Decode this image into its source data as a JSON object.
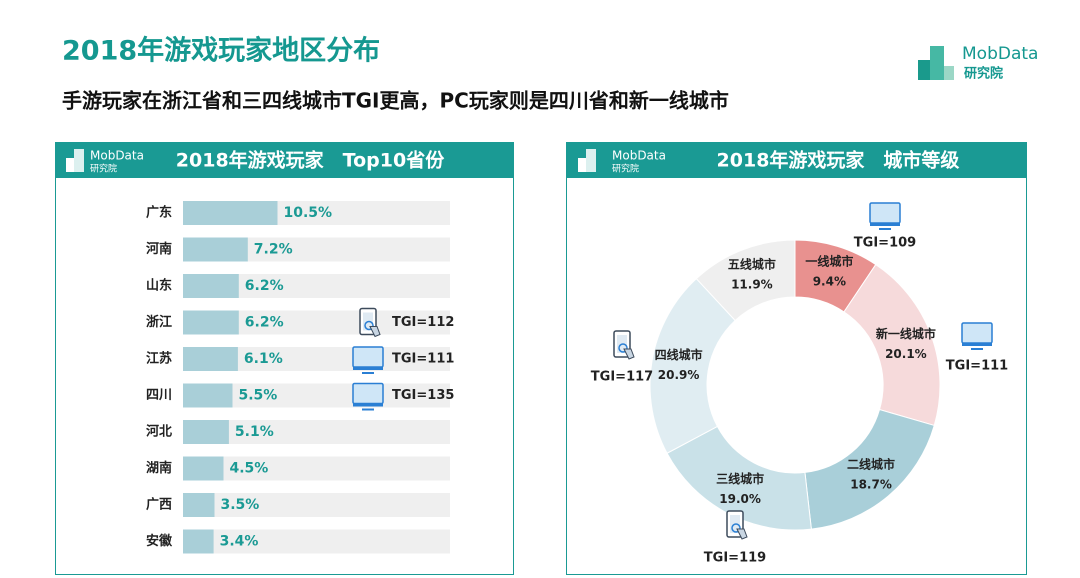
{
  "header": {
    "title": "2018年游戏玩家地区分布",
    "subtitle": "手游玩家在浙江省和三四线城市TGI更高，PC玩家则是四川省和新一线城市",
    "logo": {
      "name": "MobData",
      "sub": "研究院"
    }
  },
  "chart_data": [
    {
      "type": "bar",
      "orientation": "horizontal",
      "title": "2018年游戏玩家　Top10省份",
      "categories": [
        "广东",
        "河南",
        "山东",
        "浙江",
        "江苏",
        "四川",
        "河北",
        "湖南",
        "广西",
        "安徽"
      ],
      "values": [
        10.5,
        7.2,
        6.2,
        6.2,
        6.1,
        5.5,
        5.1,
        4.5,
        3.5,
        3.4
      ],
      "value_labels": [
        "10.5%",
        "7.2%",
        "6.2%",
        "6.2%",
        "6.1%",
        "5.5%",
        "5.1%",
        "4.5%",
        "3.5%",
        "3.4%"
      ],
      "color": "#a9cfd8",
      "annotations": [
        null,
        null,
        null,
        {
          "text": "TGI=112",
          "device": "mobile"
        },
        {
          "text": "TGI=111",
          "device": "pc"
        },
        {
          "text": "TGI=135",
          "device": "pc"
        },
        null,
        null,
        null,
        null
      ]
    },
    {
      "type": "donut",
      "title": "2018年游戏玩家　城市等级",
      "categories": [
        "一线城市",
        "新一线城市",
        "二线城市",
        "三线城市",
        "四线城市",
        "五线城市"
      ],
      "values": [
        9.4,
        20.1,
        18.7,
        19.0,
        20.9,
        11.9
      ],
      "value_labels": [
        "9.4%",
        "20.1%",
        "18.7%",
        "19.0%",
        "20.9%",
        "11.9%"
      ],
      "colors": [
        "#e8918f",
        "#f6dadb",
        "#a9cfd9",
        "#c9e1e8",
        "#e0edf2",
        "#efefef"
      ],
      "annotations": [
        {
          "text": "TGI=109",
          "device": "pc"
        },
        {
          "text": "TGI=111",
          "device": "pc"
        },
        null,
        {
          "text": "TGI=119",
          "device": "mobile"
        },
        {
          "text": "TGI=117",
          "device": "mobile"
        },
        null
      ]
    }
  ]
}
